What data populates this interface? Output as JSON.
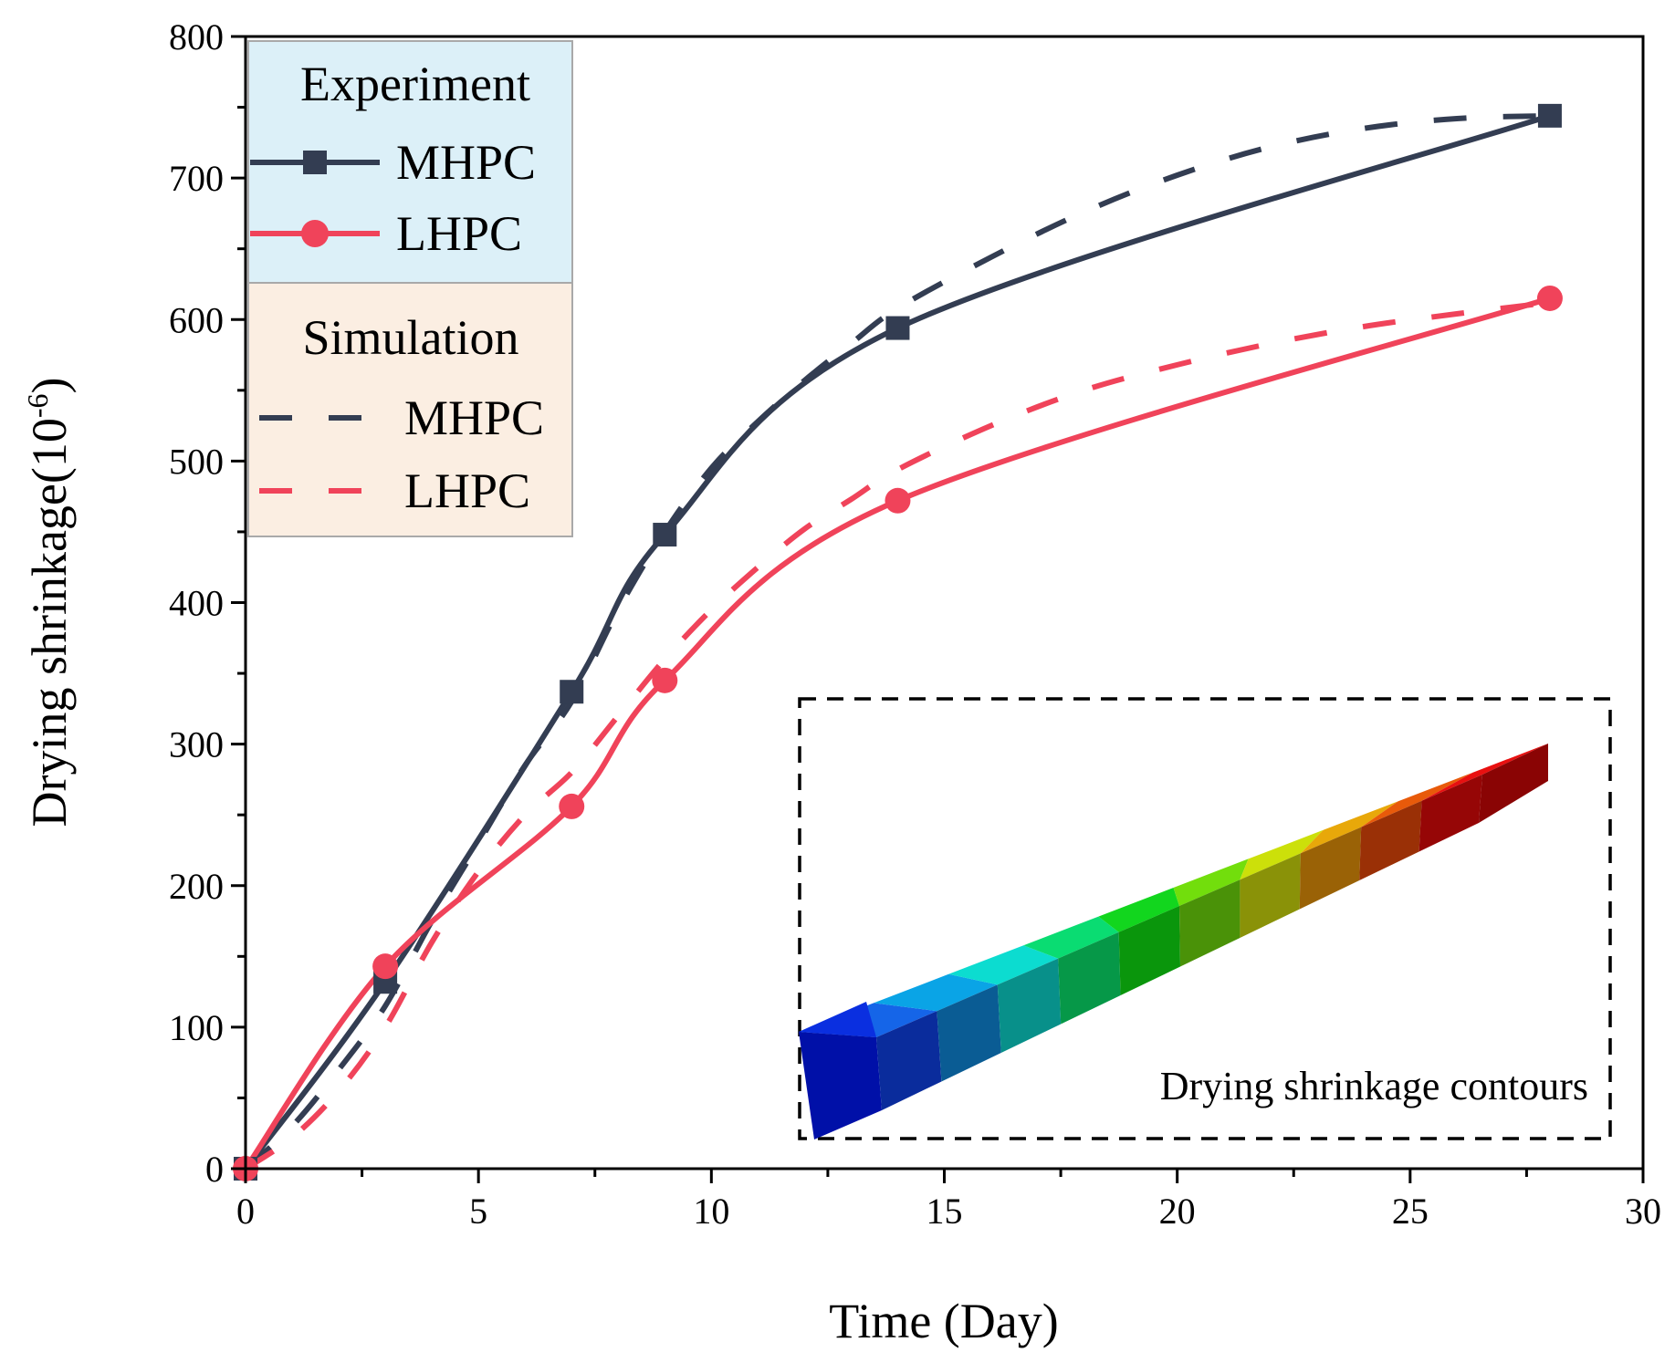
{
  "chart_data": {
    "type": "line",
    "title": "",
    "xlabel": "Time (Day)",
    "ylabel": "Drying shrinkage(10",
    "ylabel_sup": "-6",
    "ylabel_end": ")",
    "xlim": [
      0,
      30
    ],
    "ylim": [
      0,
      800
    ],
    "x_ticks": [
      0,
      5,
      10,
      15,
      20,
      25,
      30
    ],
    "y_ticks": [
      0,
      100,
      200,
      300,
      400,
      500,
      600,
      700,
      800
    ],
    "grid": false,
    "legend": {
      "placement": "top-left",
      "groups": [
        {
          "title": "Experiment",
          "entries": [
            "MHPC",
            "LHPC"
          ]
        },
        {
          "title": "Simulation",
          "entries": [
            "MHPC",
            "LHPC"
          ]
        }
      ]
    },
    "colors": {
      "mhpc": "#333d52",
      "lhpc": "#f0435a",
      "legend_exp_bg": "#dcf0f8",
      "legend_sim_bg": "#fbeee2"
    },
    "series": [
      {
        "name": "MHPC",
        "group": "Experiment",
        "style": "solid",
        "marker": "square",
        "x": [
          0,
          3,
          7,
          9,
          14,
          28
        ],
        "y": [
          0,
          132,
          337,
          448,
          594,
          744
        ]
      },
      {
        "name": "LHPC",
        "group": "Experiment",
        "style": "solid",
        "marker": "circle",
        "x": [
          0,
          3,
          7,
          9,
          14,
          28
        ],
        "y": [
          0,
          143,
          256,
          345,
          472,
          615
        ]
      },
      {
        "name": "MHPC",
        "group": "Simulation",
        "style": "dashed",
        "marker": "none",
        "x": [
          0,
          1,
          2,
          3,
          4,
          5,
          6,
          7,
          8,
          9,
          10,
          11,
          12,
          13,
          14,
          16,
          18,
          20,
          22,
          24,
          26,
          28
        ],
        "y": [
          0,
          30,
          70,
          115,
          175,
          230,
          285,
          330,
          395,
          450,
          495,
          528,
          557,
          583,
          608,
          644,
          676,
          702,
          722,
          735,
          742,
          744
        ]
      },
      {
        "name": "LHPC",
        "group": "Simulation",
        "style": "dashed",
        "marker": "none",
        "x": [
          0,
          1,
          2,
          3,
          4,
          5,
          6,
          7,
          8,
          9,
          10,
          11,
          12,
          13,
          14,
          16,
          18,
          20,
          22,
          24,
          26,
          28
        ],
        "y": [
          0,
          22,
          55,
          100,
          160,
          210,
          250,
          280,
          320,
          360,
          395,
          425,
          452,
          473,
          494,
          525,
          550,
          568,
          583,
          595,
          604,
          612
        ]
      }
    ],
    "inset": {
      "caption": "Drying shrinkage contours"
    }
  }
}
